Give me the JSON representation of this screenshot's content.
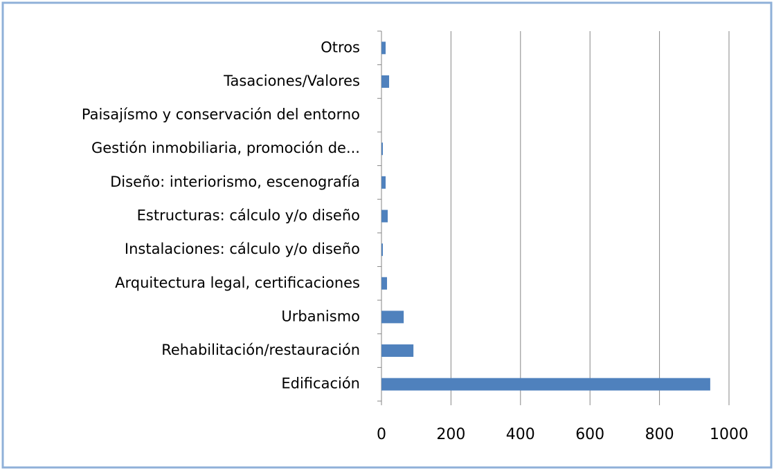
{
  "chart_data": {
    "type": "bar",
    "orientation": "horizontal",
    "categories": [
      "Otros",
      "Tasaciones/Valores",
      "Paisajísmo y conservación del entorno",
      "Gestión inmobiliaria, promoción de...",
      "Diseño: interiorismo, escenografía",
      "Estructuras: cálculo y/o diseño",
      "Instalaciones: cálculo y/o diseño",
      "Arquitectura legal, certificaciones",
      "Urbanismo",
      "Rehabilitación/restauración",
      "Edificación"
    ],
    "values": [
      12,
      22,
      0,
      4,
      12,
      18,
      4,
      16,
      64,
      92,
      946
    ],
    "color": "#4f81bd",
    "xlim": [
      0,
      1000
    ],
    "xticks": [
      0,
      200,
      400,
      600,
      800,
      1000
    ],
    "grid": true
  }
}
